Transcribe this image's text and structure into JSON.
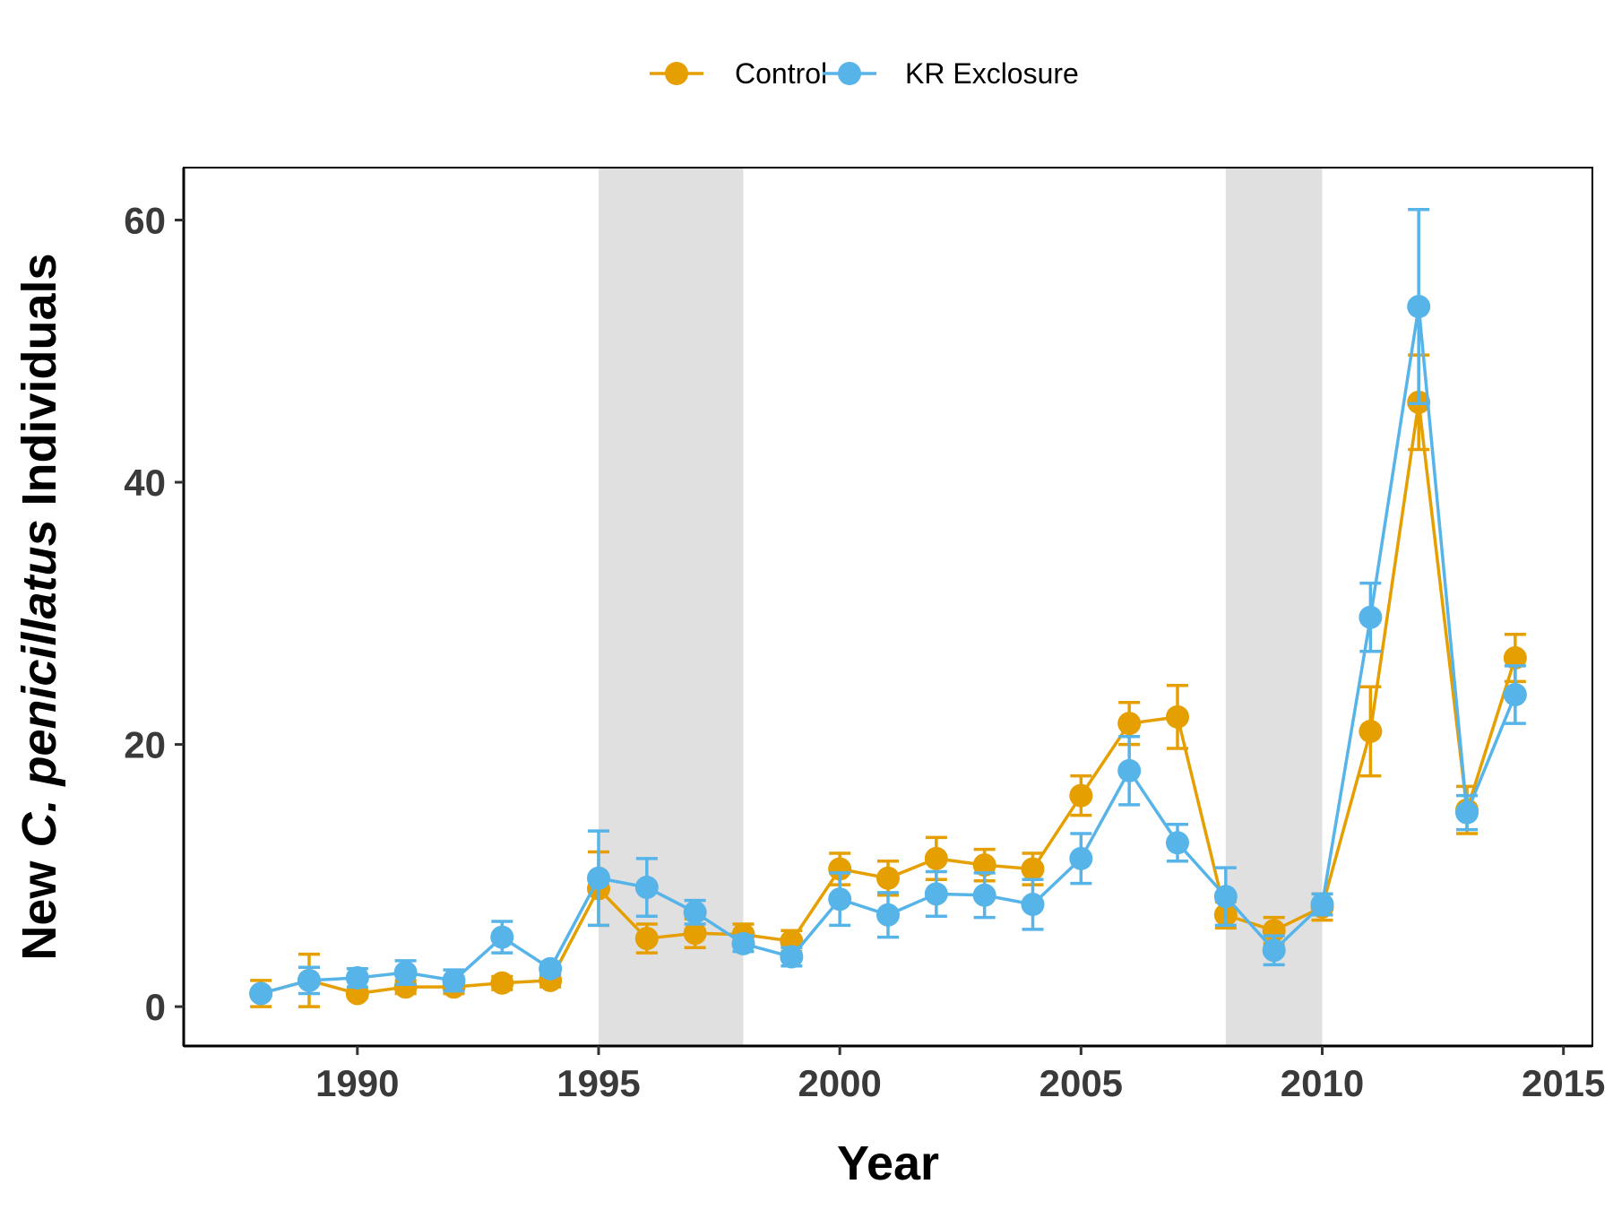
{
  "chart_data": {
    "type": "line",
    "ylabel_parts": [
      "New ",
      "C. penicillatus",
      " Individuals"
    ],
    "xlabel": "Year",
    "xlim": [
      1986.4,
      2015.6
    ],
    "ylim": [
      -3,
      64
    ],
    "x_ticks": [
      1990,
      1995,
      2000,
      2005,
      2010,
      2015
    ],
    "y_ticks": [
      0,
      20,
      40,
      60
    ],
    "grid": false,
    "legend_position": "top",
    "shaded_periods": [
      [
        1995,
        1998
      ],
      [
        2008,
        2010
      ]
    ],
    "series": [
      {
        "name": "Control",
        "color": "#E69F00",
        "x": [
          1988,
          1989,
          1990,
          1991,
          1992,
          1993,
          1994,
          1995,
          1996,
          1997,
          1998,
          1999,
          2000,
          2001,
          2002,
          2003,
          2004,
          2005,
          2006,
          2007,
          2008,
          2009,
          2010,
          2011,
          2012,
          2013,
          2014
        ],
        "y": [
          1.0,
          2.0,
          1.0,
          1.5,
          1.5,
          1.8,
          2.0,
          9.0,
          5.2,
          5.6,
          5.5,
          5.0,
          10.5,
          9.8,
          11.3,
          10.8,
          10.5,
          16.1,
          21.6,
          22.1,
          7.0,
          5.8,
          7.6,
          21.0,
          46.1,
          15.0,
          26.6
        ],
        "err": [
          1.0,
          2.0,
          0.3,
          0.5,
          0.5,
          0.5,
          0.5,
          2.8,
          1.1,
          1.1,
          0.8,
          0.8,
          1.2,
          1.3,
          1.6,
          1.2,
          1.2,
          1.5,
          1.6,
          2.4,
          1.0,
          1.0,
          1.0,
          3.4,
          3.6,
          1.8,
          1.8
        ]
      },
      {
        "name": "KR Exclosure",
        "color": "#56B4E9",
        "x": [
          1988,
          1989,
          1990,
          1991,
          1992,
          1993,
          1994,
          1995,
          1996,
          1997,
          1998,
          1999,
          2000,
          2001,
          2002,
          2003,
          2004,
          2005,
          2006,
          2007,
          2008,
          2009,
          2010,
          2011,
          2012,
          2013,
          2014
        ],
        "y": [
          1.0,
          2.0,
          2.2,
          2.6,
          2.0,
          5.3,
          2.9,
          9.8,
          9.1,
          7.2,
          4.8,
          3.8,
          8.2,
          7.0,
          8.6,
          8.5,
          7.8,
          11.3,
          18.0,
          12.5,
          8.4,
          4.3,
          7.8,
          29.7,
          53.4,
          14.8,
          23.8
        ],
        "err": [
          0.0,
          1.0,
          0.7,
          0.9,
          0.8,
          1.2,
          0.5,
          3.6,
          2.2,
          0.9,
          0.6,
          0.7,
          2.0,
          1.7,
          1.7,
          1.7,
          1.9,
          1.9,
          2.6,
          1.4,
          2.2,
          1.1,
          0.8,
          2.6,
          7.4,
          1.3,
          2.2
        ]
      }
    ]
  }
}
